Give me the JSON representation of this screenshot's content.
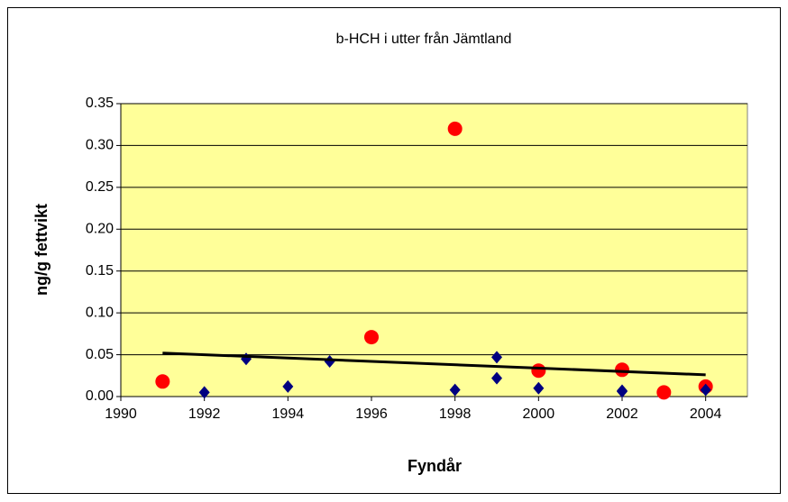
{
  "chart_data": {
    "type": "scatter",
    "title": "b-HCH i utter från Jämtland",
    "x_label": "Fyndår",
    "y_label": "ng/g fettvikt",
    "xlim": [
      1990,
      2005
    ],
    "xticks": [
      1990,
      1992,
      1994,
      1996,
      1998,
      2000,
      2002,
      2004
    ],
    "ylim": [
      0,
      0.35
    ],
    "yticks": [
      {
        "value": 0,
        "label": "0.00"
      },
      0.05,
      {
        "value": 0.1,
        "label": "0.10"
      },
      0.15,
      {
        "value": 0.2,
        "label": "0.20"
      },
      0.25,
      {
        "value": 0.3,
        "label": "0.30"
      },
      0.35
    ],
    "grid": true,
    "series": [
      {
        "color": "#ff0000",
        "marker": "circle",
        "x": [
          1991,
          1996,
          1998,
          2000,
          2002,
          2003,
          2004
        ],
        "values": [
          0.018,
          0.071,
          0.32,
          0.031,
          0.032,
          0.005,
          0.012
        ]
      },
      {
        "color": "#000080",
        "marker": "diamond",
        "x": [
          1992,
          1993,
          1994,
          1995,
          1998,
          1999,
          1999,
          2000,
          2002,
          2002,
          2004
        ],
        "values": [
          0.005,
          0.045,
          0.012,
          0.042,
          0.008,
          0.047,
          0.022,
          0.01,
          0.007,
          0.006,
          0.008
        ]
      }
    ],
    "trend": {
      "color": "#000000",
      "x": [
        1991,
        2004
      ],
      "values": [
        0.052,
        0.026
      ]
    }
  }
}
